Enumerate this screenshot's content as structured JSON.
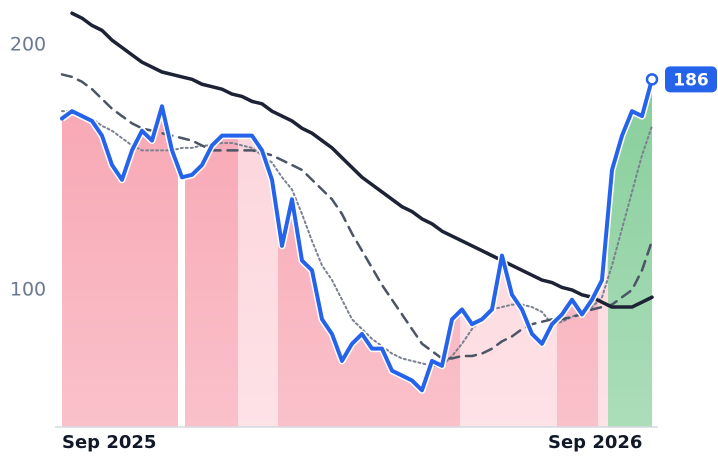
{
  "chart_data": {
    "type": "line",
    "x": [
      0,
      1,
      2,
      3,
      4,
      5,
      6,
      7,
      8,
      9,
      10,
      11,
      12,
      13,
      14,
      15,
      16,
      17,
      18,
      19,
      20,
      21,
      22,
      23,
      24,
      25,
      26,
      27,
      28,
      29,
      30,
      31,
      32,
      33,
      34,
      35,
      36,
      37,
      38,
      39,
      40,
      41,
      42,
      43,
      44,
      45,
      46,
      47,
      48,
      49,
      50,
      51,
      52,
      53,
      54,
      55,
      56,
      57,
      58,
      59
    ],
    "xlim": [
      0,
      59
    ],
    "xticks": [
      {
        "value": 0,
        "label": "Sep 2025"
      },
      {
        "value": 48.6,
        "label": "Sep 2026"
      }
    ],
    "ylim": [
      44,
      218
    ],
    "yticks": [
      100,
      200
    ],
    "series": [
      {
        "color": "#2563eb",
        "style": "solid",
        "width": 4,
        "values": [
          170,
          173,
          171,
          169,
          163,
          151,
          145,
          157,
          165,
          161,
          175,
          157,
          146,
          147,
          151,
          159,
          163,
          163,
          163,
          163,
          157,
          145,
          118,
          137,
          112,
          108,
          88,
          82,
          71,
          78,
          82,
          76,
          76,
          67,
          65,
          63,
          59,
          71,
          69,
          88,
          92,
          86,
          88,
          92,
          114,
          98,
          92,
          82,
          78,
          86,
          90,
          96,
          90,
          96,
          104,
          149,
          163,
          173,
          171,
          186
        ]
      },
      {
        "color": "#1e2235",
        "style": "solid",
        "width": 3.5,
        "values": [
          null,
          213,
          211,
          208,
          206,
          202,
          199,
          196,
          193,
          191,
          189,
          188,
          187,
          186,
          184,
          183,
          182,
          180,
          179,
          177,
          176,
          173,
          171,
          169,
          166,
          164,
          161,
          158,
          154,
          150,
          146,
          143,
          140,
          137,
          134,
          132,
          129,
          127,
          124,
          122,
          120,
          118,
          116,
          114,
          112,
          110,
          108,
          106,
          104,
          103,
          101,
          100,
          98,
          97,
          95,
          93,
          93,
          93,
          95,
          97
        ]
      },
      {
        "color": "#4b5566",
        "style": "dashed",
        "width": 2.5,
        "values": [
          188,
          187,
          185,
          182,
          178,
          174,
          171,
          168,
          166,
          165,
          164,
          163,
          162,
          161,
          159,
          157,
          157,
          157,
          157,
          157,
          156,
          155,
          153,
          151,
          149,
          145,
          141,
          137,
          131,
          123,
          116,
          109,
          102,
          96,
          90,
          84,
          78,
          75,
          72,
          72,
          73,
          73,
          74,
          76,
          79,
          81,
          84,
          86,
          87,
          88,
          88,
          89,
          90,
          92,
          93,
          94,
          97,
          100,
          108,
          120
        ]
      },
      {
        "color": "#7a8190",
        "style": "dotted",
        "width": 2,
        "values": [
          173,
          173,
          172,
          170,
          167,
          165,
          162,
          159,
          157,
          157,
          157,
          157,
          158,
          158,
          159,
          159,
          160,
          160,
          159,
          158,
          155,
          152,
          146,
          141,
          131,
          120,
          110,
          104,
          96,
          88,
          84,
          80,
          77,
          74,
          72,
          71,
          70,
          69,
          69,
          73,
          78,
          84,
          88,
          92,
          93,
          94,
          94,
          93,
          91,
          86,
          87,
          89,
          91,
          93,
          97,
          110,
          125,
          140,
          155,
          167
        ]
      }
    ],
    "bands": [
      {
        "x": [
          0,
          11.6
        ],
        "color": "#f7a0ae"
      },
      {
        "x": [
          12.3,
          17.6
        ],
        "color": "#f7a0ae"
      },
      {
        "x": [
          17.6,
          21.6
        ],
        "color": "#fcd2d9"
      },
      {
        "x": [
          21.6,
          39.8
        ],
        "color": "#f7a0ae"
      },
      {
        "x": [
          39.8,
          49.5
        ],
        "color": "#fcd2d9"
      },
      {
        "x": [
          49.5,
          53.6
        ],
        "color": "#f7a0ae"
      },
      {
        "x": [
          53.6,
          54.6
        ],
        "color": "#fcd2d9"
      },
      {
        "x": [
          54.6,
          59
        ],
        "color": "#7fcb94"
      }
    ]
  }
}
